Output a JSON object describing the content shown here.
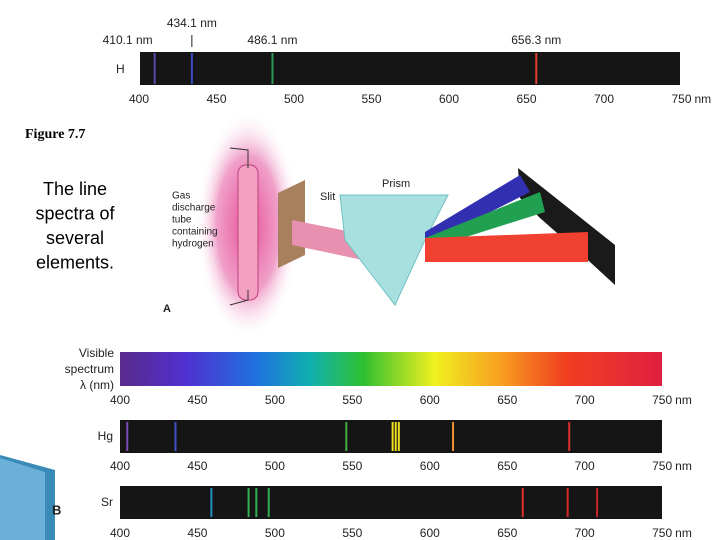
{
  "slide": {
    "figure_label": "Figure 7.7",
    "caption_lines": [
      "The line",
      "spectra of",
      "several",
      "elements."
    ]
  },
  "hydrogen_panel": {
    "element": "H",
    "lines": [
      {
        "wavelength": 410.1,
        "label": "410.1 nm",
        "color": "#5a4aa8"
      },
      {
        "wavelength": 434.1,
        "label": "434.1 nm",
        "color": "#3a4cc0"
      },
      {
        "wavelength": 486.1,
        "label": "486.1 nm",
        "color": "#2e9a5a"
      },
      {
        "wavelength": 656.3,
        "label": "656.3 nm",
        "color": "#e04030"
      }
    ],
    "axis": {
      "ticks": [
        400,
        450,
        500,
        550,
        600,
        650,
        700,
        750
      ],
      "unit": "nm"
    }
  },
  "apparatus": {
    "tube_label_lines": [
      "Gas",
      "discharge",
      "tube",
      "containing",
      "hydrogen"
    ],
    "slit_label": "Slit",
    "prism_label": "Prism",
    "panel_letter": "A"
  },
  "lower_panel": {
    "panel_letter": "B",
    "visible_label_lines": [
      "Visible",
      "spectrum",
      "λ (nm)"
    ],
    "axis": {
      "ticks": [
        400,
        450,
        500,
        550,
        600,
        650,
        700,
        750
      ],
      "unit": "nm"
    },
    "spectra": [
      {
        "element": "Hg",
        "lines": [
          {
            "wavelength": 404.7,
            "color": "#7a4ab8"
          },
          {
            "wavelength": 435.8,
            "color": "#4050c8"
          },
          {
            "wavelength": 546.1,
            "color": "#40b040"
          },
          {
            "wavelength": 576,
            "color": "#f0e020"
          },
          {
            "wavelength": 578,
            "color": "#f0e020"
          },
          {
            "wavelength": 580,
            "color": "#f0e020"
          },
          {
            "wavelength": 615,
            "color": "#f09030"
          },
          {
            "wavelength": 690,
            "color": "#d83030"
          }
        ]
      },
      {
        "element": "Sr",
        "lines": [
          {
            "wavelength": 459,
            "color": "#2090c0"
          },
          {
            "wavelength": 483,
            "color": "#30b050"
          },
          {
            "wavelength": 488,
            "color": "#30b050"
          },
          {
            "wavelength": 496,
            "color": "#30b050"
          },
          {
            "wavelength": 660,
            "color": "#e03030"
          },
          {
            "wavelength": 689,
            "color": "#d82828"
          },
          {
            "wavelength": 708,
            "color": "#c82828"
          }
        ]
      }
    ]
  }
}
